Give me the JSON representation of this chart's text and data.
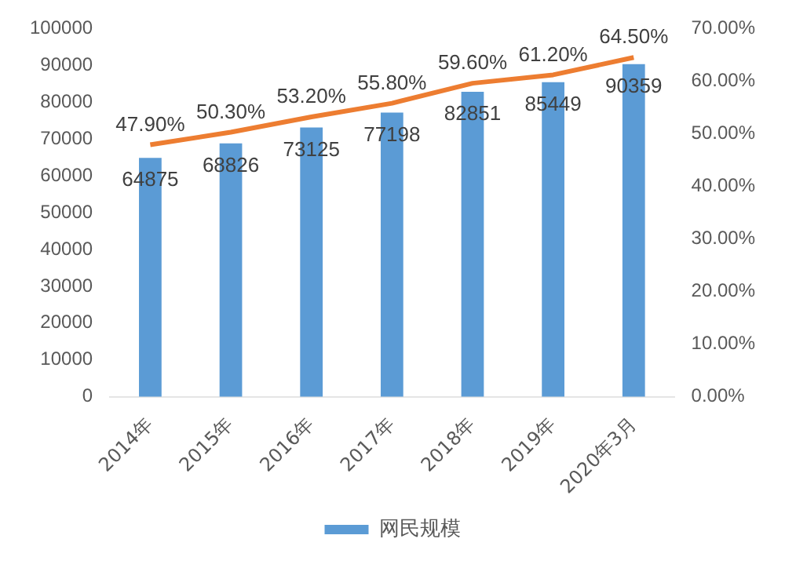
{
  "chart_data": {
    "type": "bar",
    "categories": [
      "2014年",
      "2015年",
      "2016年",
      "2017年",
      "2018年",
      "2019年",
      "2020年3月"
    ],
    "series": [
      {
        "name": "网民规模",
        "color": "#5b9bd5",
        "values": [
          64875,
          68826,
          73125,
          77198,
          82851,
          85449,
          90359
        ],
        "data_labels": true
      },
      {
        "type": "line",
        "axis": "y2",
        "color": "#ed7d31",
        "values": [
          47.9,
          50.3,
          53.2,
          55.8,
          59.6,
          61.2,
          64.5
        ],
        "value_labels": [
          "47.90%",
          "50.30%",
          "53.20%",
          "55.80%",
          "59.60%",
          "61.20%",
          "64.50%"
        ]
      }
    ],
    "ylim": [
      0,
      100000
    ],
    "yticks": [
      0,
      10000,
      20000,
      30000,
      40000,
      50000,
      60000,
      70000,
      80000,
      90000,
      100000
    ],
    "y2lim": [
      0,
      70
    ],
    "y2ticks": [
      {
        "value": 0,
        "label": "0.00%"
      },
      {
        "value": 10,
        "label": "10.00%"
      },
      {
        "value": 20,
        "label": "20.00%"
      },
      {
        "value": 30,
        "label": "30.00%"
      },
      {
        "value": 40,
        "label": "40.00%"
      },
      {
        "value": 50,
        "label": "50.00%"
      },
      {
        "value": 60,
        "label": "60.00%"
      },
      {
        "value": 70,
        "label": "70.00%"
      }
    ],
    "grid": false,
    "legend": "bottom",
    "marker": "none",
    "line_style": "solid"
  }
}
